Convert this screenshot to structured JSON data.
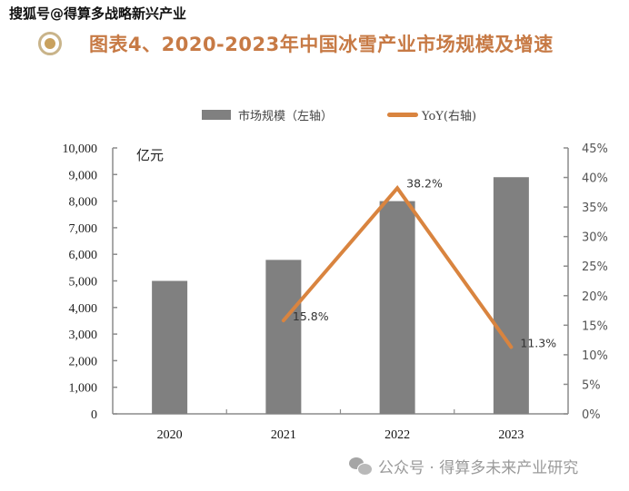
{
  "watermark_top": "搜狐号@得算多战略新兴产业",
  "title": "图表4、2020-2023年中国冰雪产业市场规模及增速",
  "colors": {
    "bar": "#808080",
    "line": "#d9843f",
    "title": "#c77a45",
    "axis": "#8c8c8c"
  },
  "watermark_bottom": {
    "icon": "wechat-icon",
    "text": "公众号 · 得算多未来产业研究"
  },
  "chart_data": {
    "type": "bar",
    "title": "图表4、2020-2023年中国冰雪产业市场规模及增速",
    "categories": [
      "2020",
      "2021",
      "2022",
      "2023"
    ],
    "series": [
      {
        "name": "市场规模（左轴）",
        "type": "bar",
        "axis": "left",
        "values": [
          5000,
          5790,
          8000,
          8900
        ]
      },
      {
        "name": "YoY(右轴)",
        "type": "line",
        "axis": "right",
        "values": [
          null,
          15.8,
          38.2,
          11.3
        ],
        "data_labels": [
          "",
          "15.8%",
          "38.2%",
          "11.3%"
        ]
      }
    ],
    "y_left": {
      "label": "亿元",
      "ylim": [
        0,
        10000
      ],
      "ticks": [
        "0",
        "1,000",
        "2,000",
        "3,000",
        "4,000",
        "5,000",
        "6,000",
        "7,000",
        "8,000",
        "9,000",
        "10,000"
      ]
    },
    "y_right": {
      "ylim": [
        0,
        45
      ],
      "ticks": [
        "0%",
        "5%",
        "10%",
        "15%",
        "20%",
        "25%",
        "30%",
        "35%",
        "40%",
        "45%"
      ]
    },
    "legend": {
      "placement": "top",
      "entries": [
        "市场规模（左轴）",
        "YoY(右轴)"
      ]
    },
    "grid": false
  }
}
